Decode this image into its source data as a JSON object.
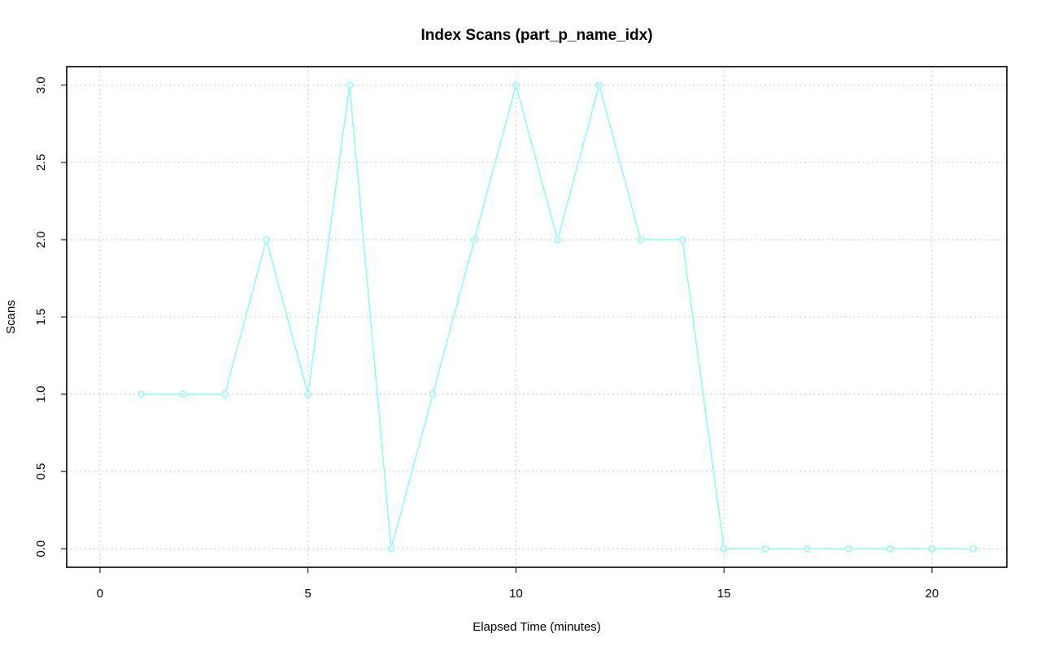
{
  "chart_data": {
    "type": "line",
    "title": "Index Scans (part_p_name_idx)",
    "xlabel": "Elapsed Time (minutes)",
    "ylabel": "Scans",
    "xlim": [
      -0.8,
      21.8
    ],
    "ylim": [
      -0.12,
      3.12
    ],
    "x_ticks": [
      0,
      5,
      10,
      15,
      20
    ],
    "x_tick_labels": [
      "0",
      "5",
      "10",
      "15",
      "20"
    ],
    "y_ticks": [
      0,
      0.5,
      1,
      1.5,
      2,
      2.5,
      3
    ],
    "y_tick_labels": [
      "0.0",
      "0.5",
      "1.0",
      "1.5",
      "2.0",
      "2.5",
      "3.0"
    ],
    "grid": true,
    "series": [
      {
        "color": "#7fffff",
        "marker": "circle",
        "x": [
          1,
          2,
          3,
          4,
          5,
          6,
          7,
          8,
          9,
          10,
          11,
          12,
          13,
          14,
          15,
          16,
          17,
          18,
          19,
          20,
          21
        ],
        "y": [
          1,
          1,
          1,
          2,
          1,
          3,
          0,
          1,
          2,
          3,
          2,
          3,
          2,
          2,
          0,
          0,
          0,
          0,
          0,
          0,
          0
        ]
      }
    ]
  }
}
